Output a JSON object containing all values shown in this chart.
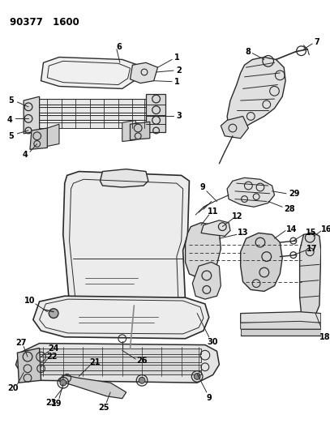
{
  "background_color": "#ffffff",
  "text_color": "#000000",
  "line_color": "#2a2a2a",
  "figsize": [
    4.07,
    5.33
  ],
  "dpi": 100,
  "header": "90377   1600"
}
